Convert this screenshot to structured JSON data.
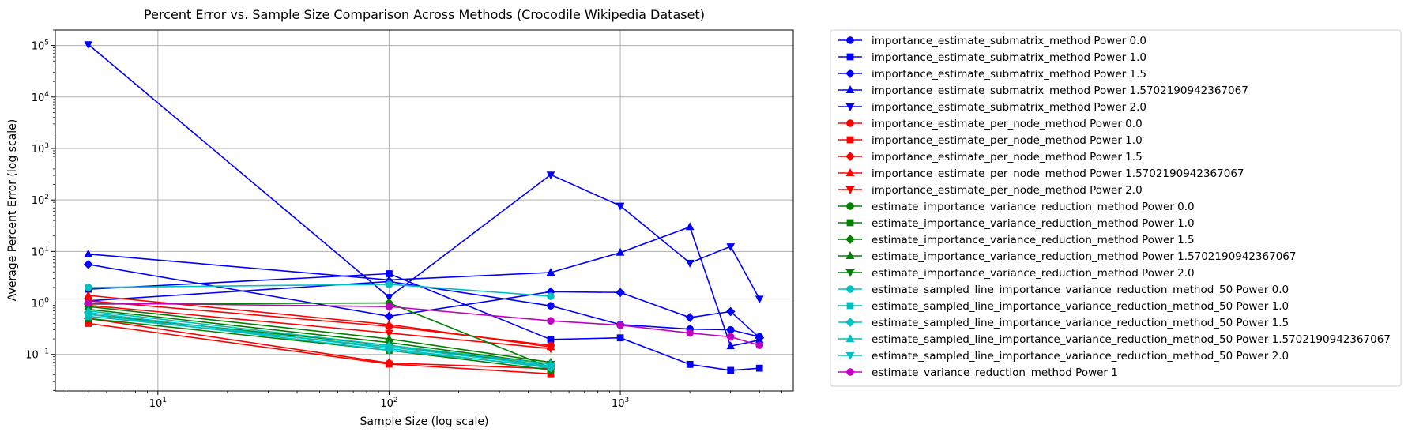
{
  "chart_data": {
    "type": "line",
    "title": "Percent Error vs. Sample Size Comparison Across Methods (Crocodile Wikipedia Dataset)",
    "xlabel": "Sample Size (log scale)",
    "ylabel": "Average Percent Error (log scale)",
    "xscale": "log",
    "yscale": "log",
    "xlim": [
      3.6,
      5600
    ],
    "ylim": [
      0.0195,
      200000
    ],
    "xticks": [
      {
        "value": 10,
        "label": "10",
        "sup": "1"
      },
      {
        "value": 100,
        "label": "10",
        "sup": "2"
      },
      {
        "value": 1000,
        "label": "10",
        "sup": "3"
      }
    ],
    "yticks": [
      {
        "value": 0.1,
        "label": "10",
        "sup": "−1"
      },
      {
        "value": 1,
        "label": "10",
        "sup": "0"
      },
      {
        "value": 10,
        "label": "10",
        "sup": "1"
      },
      {
        "value": 100,
        "label": "10",
        "sup": "2"
      },
      {
        "value": 1000,
        "label": "10",
        "sup": "3"
      },
      {
        "value": 10000,
        "label": "10",
        "sup": "4"
      },
      {
        "value": 100000,
        "label": "10",
        "sup": "5"
      }
    ],
    "grid": true,
    "legend_position": "outside-right",
    "series": [
      {
        "name": "importance_estimate_submatrix_method Power 0.0",
        "color": "#0000ff",
        "marker": "circle",
        "x": [
          5,
          100,
          500,
          1000,
          2000,
          3000,
          4000
        ],
        "y": [
          1.1,
          2.6,
          0.88,
          0.38,
          0.31,
          0.3,
          0.22
        ]
      },
      {
        "name": "importance_estimate_submatrix_method Power 1.0",
        "color": "#0000ff",
        "marker": "square",
        "x": [
          5,
          100,
          500,
          1000,
          2000,
          3000,
          4000
        ],
        "y": [
          1.85,
          3.7,
          0.195,
          0.21,
          0.064,
          0.049,
          0.054
        ]
      },
      {
        "name": "importance_estimate_submatrix_method Power 1.5",
        "color": "#0000ff",
        "marker": "diamond",
        "x": [
          5,
          100,
          500,
          1000,
          2000,
          3000,
          4000
        ],
        "y": [
          5.6,
          0.55,
          1.65,
          1.6,
          0.52,
          0.68,
          0.21
        ]
      },
      {
        "name": "importance_estimate_submatrix_method Power 1.5702190942367067",
        "color": "#0000ff",
        "marker": "triangle-up",
        "x": [
          5,
          100,
          500,
          1000,
          2000,
          3000,
          4000
        ],
        "y": [
          8.9,
          2.8,
          3.9,
          9.5,
          30,
          0.145,
          0.19
        ]
      },
      {
        "name": "importance_estimate_submatrix_method Power 2.0",
        "color": "#0000ff",
        "marker": "triangle-down",
        "x": [
          5,
          100,
          500,
          1000,
          2000,
          3000,
          4000
        ],
        "y": [
          105000,
          1.3,
          310,
          77,
          6,
          12.5,
          1.2
        ]
      },
      {
        "name": "importance_estimate_per_node_method Power 0.0",
        "color": "#ff0000",
        "marker": "circle",
        "x": [
          5,
          100,
          500
        ],
        "y": [
          1.1,
          0.35,
          0.15
        ]
      },
      {
        "name": "importance_estimate_per_node_method Power 1.0",
        "color": "#ff0000",
        "marker": "square",
        "x": [
          5,
          100,
          500
        ],
        "y": [
          0.4,
          0.065,
          0.042
        ]
      },
      {
        "name": "importance_estimate_per_node_method Power 1.5",
        "color": "#ff0000",
        "marker": "diamond",
        "x": [
          5,
          100,
          500
        ],
        "y": [
          0.5,
          0.068,
          0.053
        ]
      },
      {
        "name": "importance_estimate_per_node_method Power 1.5702190942367067",
        "color": "#ff0000",
        "marker": "triangle-up",
        "x": [
          5,
          100,
          500
        ],
        "y": [
          1.4,
          0.38,
          0.14
        ]
      },
      {
        "name": "importance_estimate_per_node_method Power 2.0",
        "color": "#ff0000",
        "marker": "triangle-down",
        "x": [
          5,
          100,
          500
        ],
        "y": [
          0.9,
          0.26,
          0.13
        ]
      },
      {
        "name": "estimate_importance_variance_reduction_method Power 0.0",
        "color": "#008000",
        "marker": "circle",
        "x": [
          5,
          100,
          500
        ],
        "y": [
          0.6,
          0.15,
          0.06
        ]
      },
      {
        "name": "estimate_importance_variance_reduction_method Power 1.0",
        "color": "#008000",
        "marker": "square",
        "x": [
          5,
          100,
          500
        ],
        "y": [
          0.5,
          0.12,
          0.05
        ]
      },
      {
        "name": "estimate_importance_variance_reduction_method Power 1.5",
        "color": "#008000",
        "marker": "diamond",
        "x": [
          5,
          100,
          500
        ],
        "y": [
          0.95,
          1.0,
          0.055
        ]
      },
      {
        "name": "estimate_importance_variance_reduction_method Power 1.5702190942367067",
        "color": "#008000",
        "marker": "triangle-up",
        "x": [
          5,
          100,
          500
        ],
        "y": [
          0.85,
          0.2,
          0.07
        ]
      },
      {
        "name": "estimate_importance_variance_reduction_method Power 2.0",
        "color": "#008000",
        "marker": "triangle-down",
        "x": [
          5,
          100,
          500
        ],
        "y": [
          0.75,
          0.17,
          0.065
        ]
      },
      {
        "name": "estimate_sampled_line_importance_variance_reduction_method_50 Power 0.0",
        "color": "#00bfbf",
        "marker": "circle",
        "x": [
          5,
          100,
          500
        ],
        "y": [
          2.0,
          2.3,
          1.35
        ]
      },
      {
        "name": "estimate_sampled_line_importance_variance_reduction_method_50 Power 1.0",
        "color": "#00bfbf",
        "marker": "square",
        "x": [
          5,
          100,
          500
        ],
        "y": [
          0.55,
          0.14,
          0.06
        ]
      },
      {
        "name": "estimate_sampled_line_importance_variance_reduction_method_50 Power 1.5",
        "color": "#00bfbf",
        "marker": "diamond",
        "x": [
          5,
          100,
          500
        ],
        "y": [
          0.65,
          0.13,
          0.055
        ]
      },
      {
        "name": "estimate_sampled_line_importance_variance_reduction_method_50 Power 1.5702190942367067",
        "color": "#00bfbf",
        "marker": "triangle-up",
        "x": [
          5,
          100,
          500
        ],
        "y": [
          0.7,
          0.15,
          0.065
        ]
      },
      {
        "name": "estimate_sampled_line_importance_variance_reduction_method_50 Power 2.0",
        "color": "#00bfbf",
        "marker": "triangle-down",
        "x": [
          5,
          100,
          500
        ],
        "y": [
          0.6,
          0.12,
          0.058
        ]
      },
      {
        "name": "estimate_variance_reduction_method Power 1",
        "color": "#bf00bf",
        "marker": "circle",
        "x": [
          5,
          100,
          500,
          1000,
          2000,
          3000,
          4000
        ],
        "y": [
          1.0,
          0.85,
          0.45,
          0.37,
          0.26,
          0.22,
          0.15
        ]
      }
    ]
  }
}
